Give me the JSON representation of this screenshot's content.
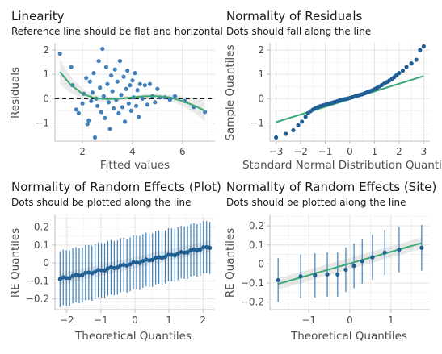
{
  "chart_data": [
    {
      "id": "linearity",
      "type": "scatter",
      "title": "Linearity",
      "subtitle": "Reference line should be flat and horizontal",
      "xlabel": "Fitted values",
      "ylabel": "Residuals",
      "xlim": [
        0.9,
        7.3
      ],
      "ylim": [
        -1.75,
        2.3
      ],
      "xticks": [
        2,
        4,
        6
      ],
      "yticks": [
        -1,
        0,
        1,
        2
      ],
      "reference_line": {
        "y": 0,
        "style": "dashed"
      },
      "points": [
        [
          1.1,
          1.85
        ],
        [
          1.55,
          1.3
        ],
        [
          1.6,
          0.55
        ],
        [
          1.75,
          -0.45
        ],
        [
          1.85,
          -0.6
        ],
        [
          2.0,
          -0.2
        ],
        [
          2.05,
          0.2
        ],
        [
          2.15,
          0.85
        ],
        [
          2.2,
          -1.05
        ],
        [
          2.25,
          -0.9
        ],
        [
          2.3,
          0.7
        ],
        [
          2.35,
          -0.1
        ],
        [
          2.4,
          0.25
        ],
        [
          2.45,
          1.05
        ],
        [
          2.5,
          -1.6
        ],
        [
          2.55,
          0.0
        ],
        [
          2.6,
          -0.3
        ],
        [
          2.65,
          1.55
        ],
        [
          2.7,
          0.45
        ],
        [
          2.75,
          -0.55
        ],
        [
          2.8,
          2.05
        ],
        [
          2.85,
          0.1
        ],
        [
          2.9,
          -0.8
        ],
        [
          2.95,
          1.3
        ],
        [
          3.0,
          0.6
        ],
        [
          3.05,
          -0.15
        ],
        [
          3.1,
          -1.25
        ],
        [
          3.15,
          0.95
        ],
        [
          3.2,
          0.3
        ],
        [
          3.25,
          -0.4
        ],
        [
          3.3,
          1.2
        ],
        [
          3.35,
          -0.05
        ],
        [
          3.4,
          0.7
        ],
        [
          3.45,
          -0.6
        ],
        [
          3.5,
          1.55
        ],
        [
          3.55,
          0.15
        ],
        [
          3.6,
          -0.35
        ],
        [
          3.65,
          0.9
        ],
        [
          3.7,
          -0.95
        ],
        [
          3.75,
          0.4
        ],
        [
          3.8,
          1.15
        ],
        [
          3.85,
          -0.2
        ],
        [
          3.9,
          0.55
        ],
        [
          3.95,
          -0.5
        ],
        [
          4.0,
          0.75
        ],
        [
          4.05,
          0.05
        ],
        [
          4.1,
          1.05
        ],
        [
          4.15,
          -0.3
        ],
        [
          4.2,
          0.35
        ],
        [
          4.25,
          -0.75
        ],
        [
          4.3,
          0.6
        ],
        [
          4.4,
          0.0
        ],
        [
          4.5,
          0.55
        ],
        [
          4.6,
          -0.25
        ],
        [
          4.7,
          0.6
        ],
        [
          4.8,
          0.1
        ],
        [
          4.9,
          -0.15
        ],
        [
          5.0,
          0.4
        ],
        [
          5.1,
          0.05
        ],
        [
          5.3,
          0.05
        ],
        [
          5.5,
          -0.05
        ],
        [
          5.7,
          0.1
        ],
        [
          6.1,
          -0.1
        ],
        [
          6.45,
          -0.35
        ],
        [
          6.9,
          -0.55
        ]
      ],
      "smooth": [
        [
          1.1,
          1.1
        ],
        [
          1.5,
          0.6
        ],
        [
          2.0,
          0.2
        ],
        [
          2.5,
          0.02
        ],
        [
          3.0,
          -0.02
        ],
        [
          3.5,
          0.0
        ],
        [
          4.0,
          0.05
        ],
        [
          4.5,
          0.1
        ],
        [
          5.0,
          0.1
        ],
        [
          5.5,
          0.05
        ],
        [
          6.0,
          -0.1
        ],
        [
          6.5,
          -0.3
        ],
        [
          6.9,
          -0.5
        ]
      ],
      "band_halfwidth": [
        0.5,
        0.35,
        0.2,
        0.12,
        0.1,
        0.08,
        0.08,
        0.08,
        0.09,
        0.12,
        0.2,
        0.3,
        0.42
      ]
    },
    {
      "id": "normality-residuals",
      "type": "scatter",
      "title": "Normality of Residuals",
      "subtitle": "Dots should fall along the line",
      "xlabel": "Standard Normal Distribution Quantiles",
      "ylabel": "Sample Quantiles",
      "xlim": [
        -3.25,
        3.25
      ],
      "ylim": [
        -1.75,
        2.3
      ],
      "xticks": [
        -3,
        -2,
        -1,
        0,
        1,
        2,
        3
      ],
      "yticks": [
        -1,
        0,
        1,
        2
      ],
      "points": [
        [
          -3.0,
          -1.6
        ],
        [
          -2.6,
          -1.45
        ],
        [
          -2.3,
          -1.3
        ],
        [
          -2.1,
          -1.1
        ],
        [
          -1.95,
          -0.95
        ],
        [
          -1.8,
          -0.75
        ],
        [
          -1.7,
          -0.6
        ],
        [
          -1.6,
          -0.52
        ],
        [
          -1.5,
          -0.45
        ],
        [
          -1.4,
          -0.4
        ],
        [
          -1.3,
          -0.35
        ],
        [
          -1.2,
          -0.31
        ],
        [
          -1.1,
          -0.28
        ],
        [
          -1.0,
          -0.25
        ],
        [
          -0.9,
          -0.22
        ],
        [
          -0.8,
          -0.19
        ],
        [
          -0.7,
          -0.16
        ],
        [
          -0.6,
          -0.13
        ],
        [
          -0.5,
          -0.1
        ],
        [
          -0.4,
          -0.07
        ],
        [
          -0.3,
          -0.04
        ],
        [
          -0.2,
          -0.02
        ],
        [
          -0.1,
          0.0
        ],
        [
          0.0,
          0.03
        ],
        [
          0.1,
          0.06
        ],
        [
          0.2,
          0.09
        ],
        [
          0.3,
          0.12
        ],
        [
          0.4,
          0.15
        ],
        [
          0.5,
          0.18
        ],
        [
          0.6,
          0.22
        ],
        [
          0.7,
          0.26
        ],
        [
          0.8,
          0.3
        ],
        [
          0.9,
          0.34
        ],
        [
          1.0,
          0.39
        ],
        [
          1.1,
          0.44
        ],
        [
          1.2,
          0.5
        ],
        [
          1.3,
          0.56
        ],
        [
          1.4,
          0.62
        ],
        [
          1.5,
          0.68
        ],
        [
          1.6,
          0.74
        ],
        [
          1.7,
          0.8
        ],
        [
          1.8,
          0.88
        ],
        [
          1.9,
          0.97
        ],
        [
          2.0,
          1.05
        ],
        [
          2.15,
          1.15
        ],
        [
          2.3,
          1.3
        ],
        [
          2.5,
          1.45
        ],
        [
          2.7,
          1.6
        ],
        [
          2.85,
          2.0
        ],
        [
          3.0,
          2.15
        ]
      ],
      "reference_line": [
        [
          -3.0,
          -0.97
        ],
        [
          3.0,
          0.93
        ]
      ]
    },
    {
      "id": "re-plot",
      "type": "scatter",
      "title": "Normality of Random Effects (Plot)",
      "subtitle": "Dots should be plotted along the line",
      "xlabel": "Theoretical Quantiles",
      "ylabel": "RE Quantiles",
      "xlim": [
        -2.35,
        2.35
      ],
      "ylim": [
        -0.26,
        0.27
      ],
      "xticks": [
        -2,
        -1,
        0,
        1,
        2
      ],
      "yticks": [
        -0.2,
        -0.1,
        0.0,
        0.1,
        0.2
      ],
      "points_count": 48,
      "x_range": [
        -2.2,
        2.2
      ],
      "y_range": [
        -0.09,
        0.09
      ],
      "error_half": [
        0.155,
        0.145
      ],
      "reference_line": [
        [
          -2.2,
          -0.09
        ],
        [
          2.2,
          0.095
        ]
      ]
    },
    {
      "id": "re-site",
      "type": "scatter",
      "title": "Normality of Random Effects (Site)",
      "subtitle": "Dots should be plotted along the line",
      "xlabel": "Theoretical Quantiles",
      "ylabel": "RE Quantiles",
      "xlim": [
        -1.95,
        1.95
      ],
      "ylim": [
        -0.24,
        0.26
      ],
      "xticks": [
        -1,
        0,
        1
      ],
      "yticks": [
        -0.2,
        -0.1,
        0.0,
        0.1,
        0.2
      ],
      "points": [
        [
          -1.75,
          -0.085
        ],
        [
          -1.2,
          -0.065
        ],
        [
          -0.85,
          -0.06
        ],
        [
          -0.55,
          -0.055
        ],
        [
          -0.3,
          -0.055
        ],
        [
          -0.1,
          -0.03
        ],
        [
          0.1,
          -0.01
        ],
        [
          0.3,
          0.015
        ],
        [
          0.55,
          0.035
        ],
        [
          0.85,
          0.06
        ],
        [
          1.2,
          0.075
        ],
        [
          1.75,
          0.085
        ]
      ],
      "error_half": [
        0.115,
        0.12
      ],
      "reference_line": [
        [
          -1.75,
          -0.105
        ],
        [
          1.75,
          0.11
        ]
      ]
    }
  ],
  "colors": {
    "point": "#2d73b2",
    "point_dark": "#1f5f96",
    "line": "#3aa977",
    "band": "#d9d9d9",
    "errorbar": "#3d7fb9"
  }
}
